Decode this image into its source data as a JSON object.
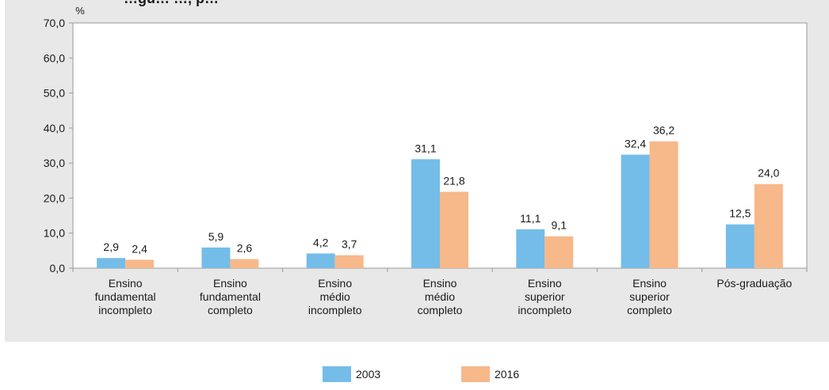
{
  "chart_data": {
    "type": "bar",
    "title_fragment": "…gu… …, p…",
    "ylabel": "%",
    "ylim": [
      0,
      70
    ],
    "y_ticks": [
      "0,0",
      "10,0",
      "20,0",
      "30,0",
      "40,0",
      "50,0",
      "60,0",
      "70,0"
    ],
    "categories": [
      [
        "Ensino",
        "fundamental",
        "incompleto"
      ],
      [
        "Ensino",
        "fundamental",
        "completo"
      ],
      [
        "Ensino",
        "médio",
        "incompleto"
      ],
      [
        "Ensino",
        "médio",
        "completo"
      ],
      [
        "Ensino",
        "superior",
        "incompleto"
      ],
      [
        "Ensino",
        "superior",
        "completo"
      ],
      [
        "Pós-graduação"
      ]
    ],
    "series": [
      {
        "name": "2003",
        "color": "#74bde8",
        "values": [
          2.9,
          5.9,
          4.2,
          31.1,
          11.1,
          32.4,
          12.5
        ],
        "labels": [
          "2,9",
          "5,9",
          "4,2",
          "31,1",
          "11,1",
          "32,4",
          "12,5"
        ]
      },
      {
        "name": "2016",
        "color": "#f7b88a",
        "values": [
          2.4,
          2.6,
          3.7,
          21.8,
          9.1,
          36.2,
          24.0
        ],
        "labels": [
          "2,4",
          "2,6",
          "3,7",
          "21,8",
          "9,1",
          "36,2",
          "24,0"
        ]
      }
    ],
    "grid": false,
    "legend": "bottom-center"
  }
}
